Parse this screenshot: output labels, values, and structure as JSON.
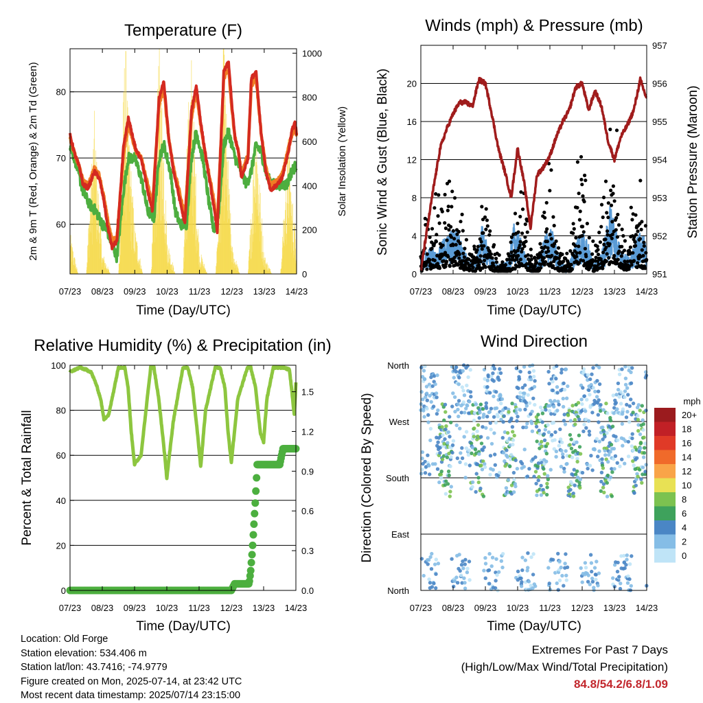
{
  "chart_data": [
    {
      "type": "line",
      "title": "Temperature (F)",
      "xlabel": "Time (Day/UTC)",
      "ylabel": "2m & 9m T (Red, Orange) & 2m Td (Green)",
      "y2label": "Solar Insolation (Yellow)",
      "x_ticks": [
        "07/23",
        "08/23",
        "09/23",
        "10/23",
        "11/23",
        "12/23",
        "13/23",
        "14/23"
      ],
      "ylim": [
        52.5,
        86.5
      ],
      "y_ticks": [
        60,
        70,
        80
      ],
      "y2lim": [
        0,
        1020
      ],
      "y2_ticks": [
        0,
        200,
        400,
        600,
        800,
        1000
      ],
      "grid": "horizontal",
      "colors": {
        "t2m": "#d42a20",
        "t9m": "#f07c24",
        "td2m": "#4dae3f",
        "solar": "#f5d94a"
      },
      "series": [
        {
          "name": "2m T",
          "x": [
            0,
            0.15,
            0.3,
            0.4,
            0.55,
            0.65,
            0.75,
            0.9,
            1.05,
            1.15,
            1.3,
            1.45,
            1.65,
            1.8,
            1.95,
            2.05,
            2.2,
            2.4,
            2.55,
            2.75,
            2.9,
            3.05,
            3.2,
            3.4,
            3.55,
            3.75,
            3.9,
            4.05,
            4.2,
            4.4,
            4.55,
            4.75,
            4.9,
            5.0,
            5.1,
            5.2,
            5.3,
            5.5,
            5.6,
            5.75,
            5.9,
            6.05,
            6.2,
            6.4,
            6.55,
            6.65,
            6.75,
            6.85,
            6.95,
            7.0
          ],
          "values": [
            73.5,
            70.5,
            68.5,
            66,
            65.5,
            66.5,
            68,
            67,
            63.5,
            60,
            56.5,
            57.5,
            71.5,
            76,
            73,
            71,
            70,
            65,
            62,
            79,
            81.5,
            73,
            68,
            63.5,
            60,
            77,
            81,
            75,
            70,
            64,
            59,
            83,
            84.5,
            78,
            73,
            71,
            67,
            70,
            82,
            83,
            74,
            68,
            65,
            66,
            67,
            69,
            71,
            74,
            75.5,
            73.5
          ]
        },
        {
          "name": "9m T",
          "x": [
            0,
            0.15,
            0.3,
            0.4,
            0.55,
            0.65,
            0.75,
            0.9,
            1.05,
            1.15,
            1.3,
            1.45,
            1.65,
            1.8,
            1.95,
            2.05,
            2.2,
            2.4,
            2.55,
            2.75,
            2.9,
            3.05,
            3.2,
            3.4,
            3.55,
            3.75,
            3.9,
            4.05,
            4.2,
            4.4,
            4.55,
            4.75,
            4.9,
            5.0,
            5.1,
            5.2,
            5.3,
            5.5,
            5.6,
            5.75,
            5.9,
            6.05,
            6.2,
            6.4,
            6.55,
            6.65,
            6.75,
            6.85,
            6.95,
            7.0
          ],
          "values": [
            73,
            70.5,
            68.5,
            66.5,
            66,
            67,
            68.5,
            67.5,
            64,
            61,
            57.5,
            58,
            70.5,
            75,
            72.5,
            71,
            70,
            66,
            63,
            78,
            80.5,
            73,
            68.5,
            64.5,
            61,
            76,
            80,
            74.5,
            70,
            65,
            60,
            82,
            83.5,
            77.5,
            73,
            71,
            67.5,
            70.5,
            81,
            82,
            74,
            68.5,
            66,
            66.5,
            67.5,
            69.5,
            71.5,
            73.5,
            74.5,
            73.5
          ]
        },
        {
          "name": "2m Td",
          "x": [
            0,
            0.2,
            0.4,
            0.6,
            0.8,
            1.0,
            1.15,
            1.3,
            1.45,
            1.65,
            1.8,
            2.0,
            2.2,
            2.4,
            2.6,
            2.75,
            2.9,
            3.1,
            3.25,
            3.4,
            3.6,
            3.75,
            3.9,
            4.1,
            4.3,
            4.45,
            4.6,
            4.75,
            4.9,
            5.1,
            5.3,
            5.45,
            5.6,
            5.75,
            5.9,
            6.1,
            6.3,
            6.5,
            6.7,
            6.85,
            7.0
          ],
          "values": [
            72,
            69,
            65,
            63,
            62,
            60,
            59,
            57,
            55,
            65,
            70,
            70,
            67,
            62,
            61,
            70,
            72,
            68,
            62,
            60,
            60,
            70,
            74,
            70,
            63,
            59,
            62,
            72,
            74,
            70,
            68,
            66,
            68,
            72,
            71,
            67,
            66,
            66,
            66,
            68,
            69
          ]
        },
        {
          "name": "Solar Insolation",
          "axis": "y2",
          "x": [
            0,
            0.25,
            0.5,
            0.6,
            0.75,
            0.85,
            1.0,
            1.25,
            1.5,
            1.6,
            1.7,
            1.8,
            2.0,
            2.25,
            2.5,
            2.65,
            2.75,
            2.9,
            3.0,
            3.25,
            3.5,
            3.6,
            3.75,
            3.85,
            4.0,
            4.25,
            4.5,
            4.65,
            4.75,
            4.85,
            5.0,
            5.25,
            5.5,
            5.65,
            5.75,
            5.85,
            6.0,
            6.25,
            6.5,
            6.65,
            6.75,
            6.85,
            7.0
          ],
          "values": [
            170,
            0,
            0,
            300,
            650,
            400,
            90,
            0,
            0,
            450,
            1000,
            620,
            200,
            0,
            0,
            500,
            930,
            600,
            150,
            0,
            0,
            550,
            900,
            520,
            100,
            0,
            0,
            520,
            960,
            580,
            120,
            0,
            0,
            420,
            760,
            400,
            80,
            0,
            0,
            350,
            600,
            330,
            150
          ]
        }
      ]
    },
    {
      "type": "scatter",
      "title": "Winds (mph) & Pressure (mb)",
      "xlabel": "Time (Day/UTC)",
      "ylabel": "Sonic Wind & Gust (Blue, Black)",
      "y2label": "Station Pressure (Maroon)",
      "x_ticks": [
        "07/23",
        "08/23",
        "09/23",
        "10/23",
        "11/23",
        "12/23",
        "13/23",
        "14/23"
      ],
      "ylim": [
        0,
        24
      ],
      "y_ticks": [
        0,
        4,
        8,
        12,
        16,
        20
      ],
      "y2lim": [
        951,
        957
      ],
      "y2_ticks": [
        951,
        952,
        953,
        954,
        955,
        956,
        957
      ],
      "grid": "horizontal",
      "colors": {
        "wind": "#5a9bd5",
        "gust": "#000000",
        "pressure": "#a01c1c"
      },
      "series": [
        {
          "name": "Wind",
          "x": [
            0,
            0.3,
            0.5,
            0.7,
            0.9,
            1.1,
            1.3,
            1.5,
            1.7,
            1.9,
            2.1,
            2.3,
            2.5,
            2.7,
            2.9,
            3.1,
            3.3,
            3.5,
            3.7,
            3.9,
            4.1,
            4.3,
            4.5,
            4.7,
            4.9,
            5.1,
            5.3,
            5.5,
            5.7,
            5.9,
            6.1,
            6.3,
            6.5,
            6.7,
            6.9,
            7.0
          ],
          "values": [
            1.2,
            2.0,
            1.5,
            2.5,
            3.0,
            3.5,
            2.0,
            1.0,
            0.8,
            3.5,
            2.0,
            0.8,
            0.6,
            1.0,
            3.8,
            2.5,
            0.8,
            0.5,
            1.2,
            3.5,
            3.0,
            1.0,
            0.6,
            1.5,
            3.2,
            3.0,
            1.2,
            0.8,
            2.5,
            5.5,
            2.5,
            1.5,
            1.2,
            2.8,
            3.0,
            1.5
          ]
        },
        {
          "name": "Gust",
          "x": [
            0,
            0.2,
            0.4,
            0.6,
            0.8,
            1.0,
            1.2,
            1.4,
            1.6,
            1.8,
            2.0,
            2.2,
            2.4,
            2.6,
            2.8,
            3.0,
            3.2,
            3.4,
            3.6,
            3.8,
            4.0,
            4.2,
            4.4,
            4.6,
            4.8,
            5.0,
            5.2,
            5.4,
            5.6,
            5.8,
            6.0,
            6.2,
            6.4,
            6.6,
            6.8,
            7.0
          ],
          "values": [
            2.5,
            4.5,
            5.5,
            6.0,
            7.5,
            8.5,
            5.0,
            3.0,
            2.0,
            3.0,
            6.5,
            3.5,
            1.5,
            1.0,
            2.5,
            7.0,
            5.5,
            2.0,
            1.5,
            6.0,
            8.0,
            4.0,
            1.5,
            1.5,
            7.5,
            9.5,
            4.0,
            2.0,
            5.0,
            9.0,
            11.5,
            5.0,
            3.5,
            6.0,
            7.0,
            4.0
          ]
        },
        {
          "name": "Pressure",
          "axis": "y2",
          "x": [
            0,
            0.2,
            0.4,
            0.6,
            0.8,
            1.0,
            1.2,
            1.4,
            1.6,
            1.8,
            2.0,
            2.2,
            2.4,
            2.6,
            2.8,
            3.0,
            3.2,
            3.4,
            3.6,
            3.8,
            4.0,
            4.2,
            4.4,
            4.6,
            4.8,
            5.0,
            5.2,
            5.4,
            5.6,
            5.8,
            6.0,
            6.2,
            6.4,
            6.6,
            6.8,
            7.0
          ],
          "values": [
            951.1,
            952.2,
            953.3,
            954.3,
            954.8,
            955.2,
            955.5,
            955.5,
            955.4,
            956.1,
            956.0,
            955.2,
            954.3,
            953.7,
            953.0,
            954.3,
            953.4,
            952.2,
            953.6,
            953.8,
            954.1,
            954.6,
            955.0,
            955.3,
            955.9,
            956.0,
            955.3,
            955.8,
            955.4,
            954.5,
            954.0,
            954.6,
            954.9,
            955.3,
            956.1,
            955.6
          ]
        }
      ]
    },
    {
      "type": "line",
      "title": "Relative Humidity (%) & Precipitation (in)",
      "xlabel": "Time (Day/UTC)",
      "ylabel": "Percent & Total Rainfall",
      "x_ticks": [
        "07/23",
        "08/23",
        "09/23",
        "10/23",
        "11/23",
        "12/23",
        "13/23",
        "14/23"
      ],
      "ylim": [
        0,
        100
      ],
      "y_ticks": [
        0,
        20,
        40,
        60,
        80,
        100
      ],
      "y2lim": [
        0,
        1.7
      ],
      "y2_ticks": [
        "0.0",
        "0.3",
        "0.6",
        "0.9",
        "1.2",
        "1.5"
      ],
      "grid": "horizontal",
      "colors": {
        "rh": "#8dc63f",
        "precip": "#4caf3f"
      },
      "series": [
        {
          "name": "Relative Humidity",
          "x": [
            0,
            0.3,
            0.5,
            0.65,
            0.8,
            0.95,
            1.05,
            1.2,
            1.5,
            1.7,
            1.8,
            1.9,
            2.0,
            2.2,
            2.5,
            2.6,
            2.75,
            2.9,
            3.0,
            3.2,
            3.5,
            3.65,
            3.8,
            3.95,
            4.05,
            4.2,
            4.5,
            4.65,
            4.8,
            4.9,
            5.0,
            5.2,
            5.5,
            5.6,
            5.75,
            5.9,
            6.0,
            6.1,
            6.3,
            6.6,
            6.8,
            6.9,
            6.95,
            7.0
          ],
          "values": [
            97,
            99,
            98,
            97,
            92,
            85,
            76,
            78,
            99,
            99,
            90,
            70,
            56,
            60,
            99,
            99,
            85,
            65,
            50,
            75,
            99,
            99,
            90,
            70,
            55,
            80,
            99,
            99,
            90,
            70,
            57,
            85,
            99,
            99,
            90,
            70,
            66,
            85,
            99,
            99,
            98,
            85,
            78,
            92
          ]
        },
        {
          "name": "Total Precipitation",
          "axis": "y2",
          "x": [
            0,
            4.9,
            5.0,
            5.1,
            5.3,
            5.55,
            5.6,
            5.65,
            5.7,
            5.75,
            5.8,
            6.5,
            6.6,
            6.9,
            7.0
          ],
          "values": [
            0,
            0,
            0,
            0.05,
            0.05,
            0.05,
            0.15,
            0.3,
            0.5,
            0.7,
            0.95,
            0.95,
            1.07,
            1.07,
            1.07
          ]
        }
      ]
    },
    {
      "type": "scatter",
      "title": "Wind Direction",
      "xlabel": "Time (Day/UTC)",
      "ylabel": "Direction (Colored By Speed)",
      "x_ticks": [
        "07/23",
        "08/23",
        "09/23",
        "10/23",
        "11/23",
        "12/23",
        "13/23",
        "14/23"
      ],
      "y_ticks": [
        "North",
        "East",
        "South",
        "West",
        "North"
      ],
      "ylim": [
        0,
        360
      ],
      "grid": "horizontal",
      "legend": {
        "title": "mph",
        "labels": [
          "20+",
          "18",
          "16",
          "14",
          "12",
          "10",
          "8",
          "6",
          "4",
          "2",
          "0"
        ],
        "colors": [
          "#9b1b1e",
          "#c12026",
          "#e03a27",
          "#f06a2a",
          "#f9a448",
          "#e8e154",
          "#7cc250",
          "#3ea25c",
          "#4a86c5",
          "#85bde6",
          "#bfe4f7"
        ]
      }
    }
  ],
  "info": {
    "location": "Location: Old Forge",
    "elevation": "Station elevation: 534.406 m",
    "latlon": "Station lat/lon: 43.7416; -74.9779",
    "created": "Figure created on Mon, 2025-07-14, at 23:42 UTC",
    "recent": "Most recent data timestamp: 2025/07/14 23:15:00"
  },
  "extremes": {
    "line1": "Extremes For Past 7 Days",
    "line2": "(High/Low/Max Wind/Total Precipitation)",
    "values": "84.8/54.2/6.8/1.09"
  }
}
